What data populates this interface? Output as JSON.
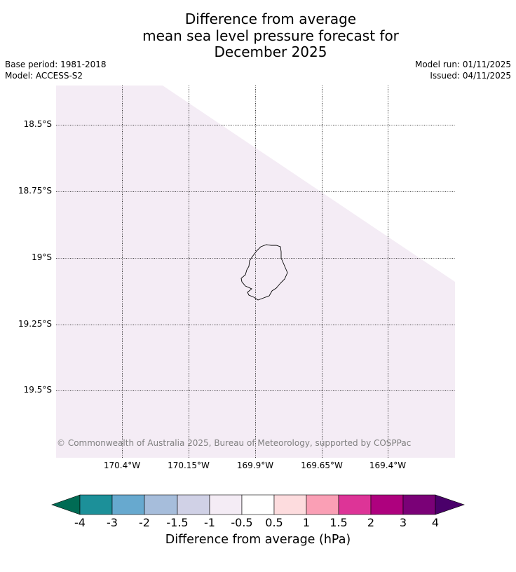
{
  "title": {
    "line1": "Difference from average",
    "line2": "mean sea level pressure forecast for",
    "line3": "December 2025"
  },
  "meta": {
    "base_period": "Base period: 1981-2018",
    "model": "Model: ACCESS-S2",
    "model_run": "Model run: 01/11/2025",
    "issued": "Issued: 04/11/2025"
  },
  "map": {
    "latitude_labels": [
      "18.5°S",
      "18.75°S",
      "19°S",
      "19.25°S",
      "19.5°S"
    ],
    "longitude_labels": [
      "170.4°W",
      "170.15°W",
      "169.9°W",
      "169.65°W",
      "169.4°W"
    ],
    "fill_color": "#f4ecf5",
    "coast_color": "#000000",
    "grid_style": "dotted",
    "copyright": "© Commonwealth of Australia 2025, Bureau of Meteorology, supported by COSPPac"
  },
  "colorbar": {
    "title": "Difference from average (hPa)",
    "tick_labels": [
      "-4",
      "-3",
      "-2",
      "-1.5",
      "-1",
      "-0.5",
      "0.5",
      "1",
      "1.5",
      "2",
      "3",
      "4"
    ],
    "under_color": "#006b54",
    "over_color": "#4a006a",
    "colors": [
      "#1c9099",
      "#67a9cf",
      "#a6bddb",
      "#d0d1e6",
      "#f4ecf5",
      "#ffffff",
      "#fddcde",
      "#fa9fb5",
      "#dd3497",
      "#ae017e",
      "#7a0177"
    ]
  }
}
